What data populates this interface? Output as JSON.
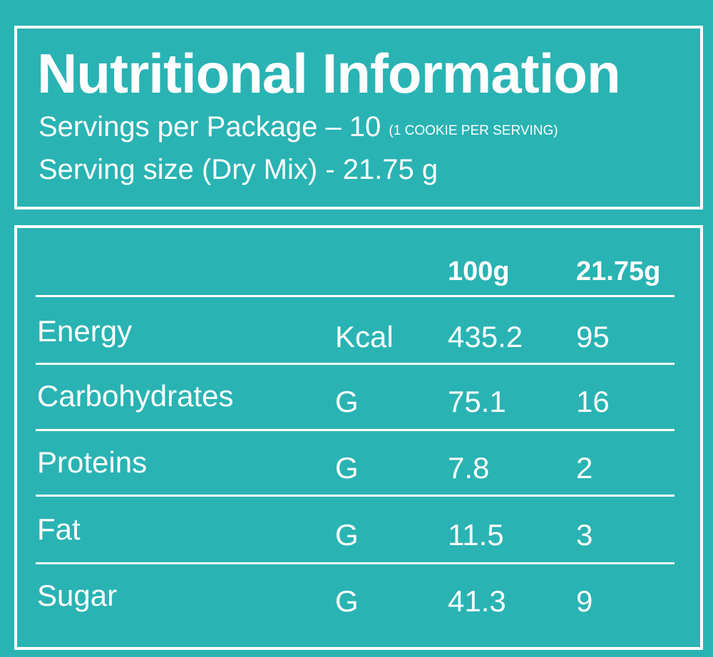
{
  "panel": {
    "title": "Nutritional Information",
    "servings_text": "Servings per Package – 10",
    "servings_note": "(1 COOKIE PER SERVING)",
    "serving_size": "Serving size (Dry Mix) - 21.75 g"
  },
  "table": {
    "columns": [
      "100g",
      "21.75g"
    ],
    "rows": [
      {
        "name": "Energy",
        "unit": "Kcal",
        "per_100g": "435.2",
        "per_serving": "95"
      },
      {
        "name": "Carbohydrates",
        "unit": "G",
        "per_100g": "75.1",
        "per_serving": "16"
      },
      {
        "name": "Proteins",
        "unit": "G",
        "per_100g": "7.8",
        "per_serving": "2"
      },
      {
        "name": "Fat",
        "unit": "G",
        "per_100g": "11.5",
        "per_serving": "3"
      },
      {
        "name": "Sugar",
        "unit": "G",
        "per_100g": "41.3",
        "per_serving": "9"
      }
    ]
  },
  "colors": {
    "background": "#2ab3b3",
    "text": "#ffffff"
  }
}
